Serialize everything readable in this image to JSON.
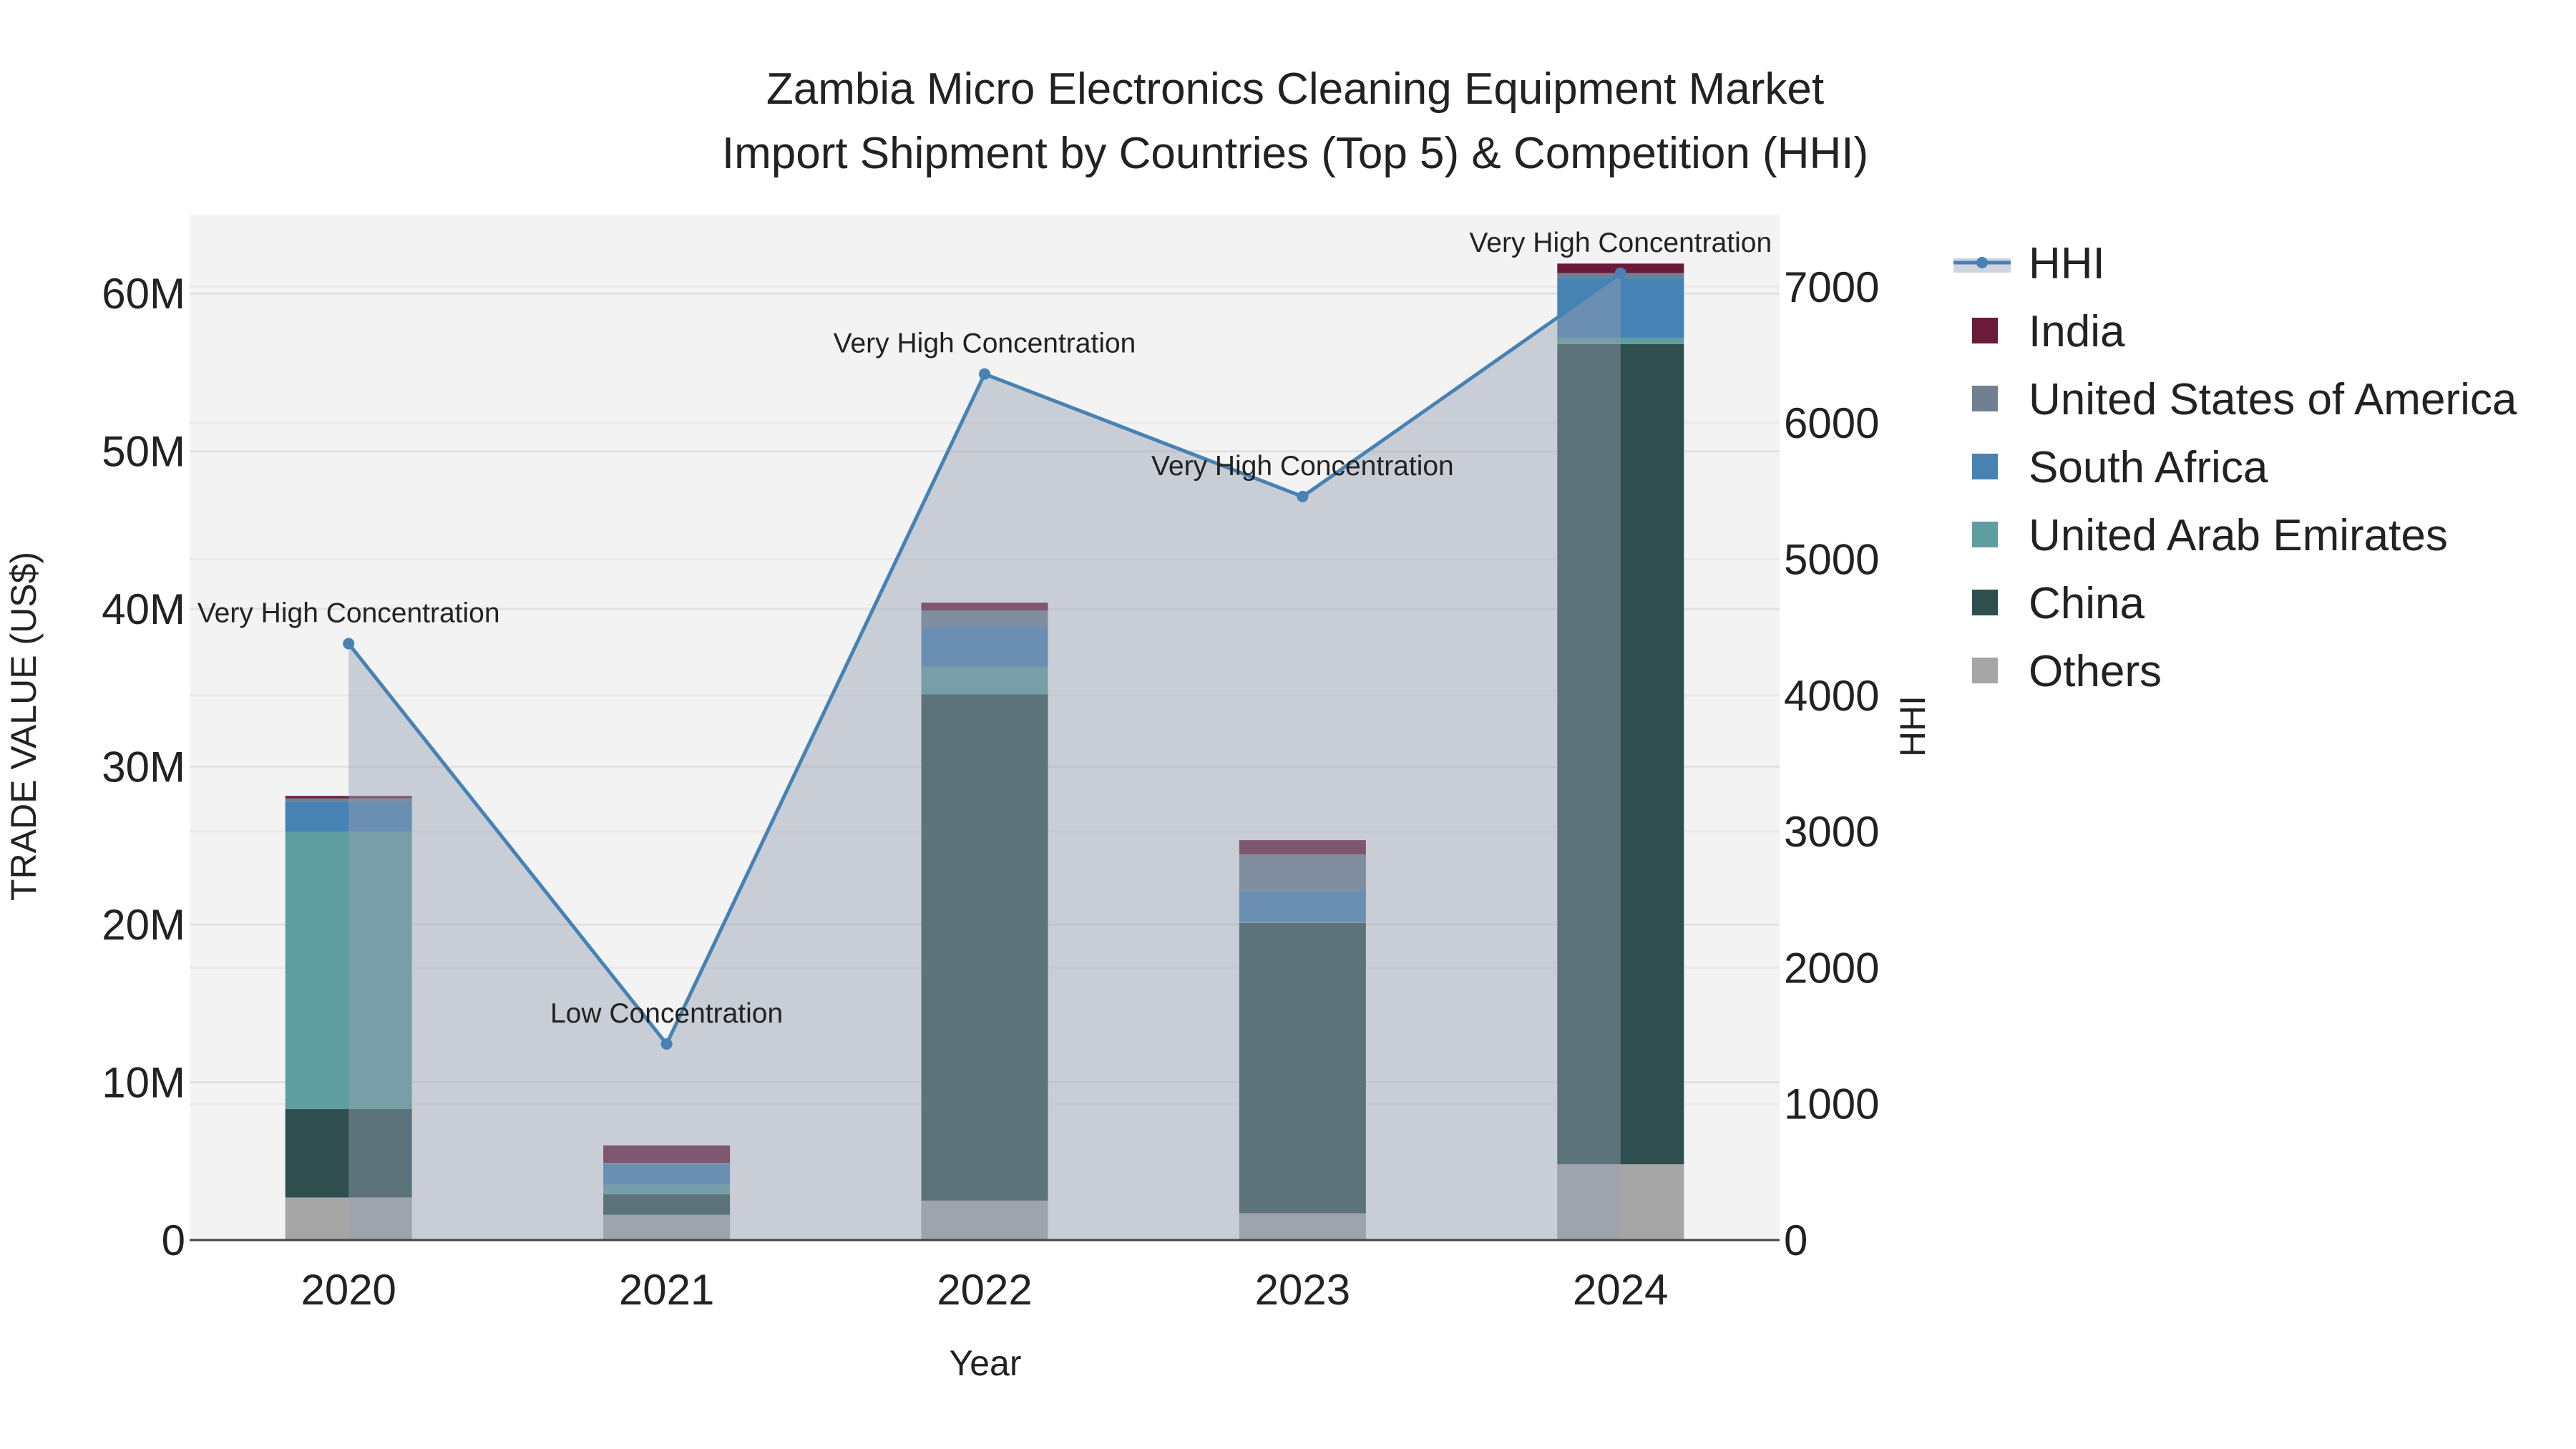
{
  "chart_data": {
    "type": "bar",
    "title_line1": "Zambia Micro Electronics Cleaning Equipment Market",
    "title_line2": "Import Shipment by Countries (Top 5) & Competition (HHI)",
    "xlabel": "Year",
    "ylabel": "TRADE VALUE (US$)",
    "y2label": "HHI",
    "categories": [
      "2020",
      "2021",
      "2022",
      "2023",
      "2024"
    ],
    "ylim": [
      0,
      65000000
    ],
    "y2lim": [
      0,
      7530
    ],
    "yticks": [
      0,
      10000000,
      20000000,
      30000000,
      40000000,
      50000000,
      60000000
    ],
    "ytick_labels": [
      "0",
      "10M",
      "20M",
      "30M",
      "40M",
      "50M",
      "60M"
    ],
    "y2ticks": [
      0,
      1000,
      2000,
      3000,
      4000,
      5000,
      6000,
      7000
    ],
    "y2tick_labels": [
      "0",
      "1000",
      "2000",
      "3000",
      "4000",
      "5000",
      "6000",
      "7000"
    ],
    "grid": true,
    "legend_position": "right",
    "series": [
      {
        "name": "Others",
        "color": "#a6a6a6",
        "values": [
          2700000,
          1600000,
          2500000,
          1700000,
          4800000
        ]
      },
      {
        "name": "China",
        "color": "#2f4f4f",
        "values": [
          5600000,
          1300000,
          32100000,
          18400000,
          52000000
        ]
      },
      {
        "name": "United Arab Emirates",
        "color": "#5f9ea0",
        "values": [
          17600000,
          600000,
          1700000,
          50000,
          400000
        ]
      },
      {
        "name": "South Africa",
        "color": "#4682b4",
        "values": [
          1900000,
          1300000,
          2600000,
          2000000,
          3800000
        ]
      },
      {
        "name": "United States of America",
        "color": "#708090",
        "values": [
          200000,
          100000,
          1000000,
          2300000,
          300000
        ]
      },
      {
        "name": "India",
        "color": "#6b1a3a",
        "values": [
          150000,
          1100000,
          500000,
          900000,
          600000
        ]
      }
    ],
    "hhi": {
      "name": "HHI",
      "color": "#4682b4",
      "values": [
        4380,
        1440,
        6360,
        5460,
        7100
      ],
      "annotations": [
        "Very High Concentration",
        "Low Concentration",
        "Very High Concentration",
        "Very High Concentration",
        "Very High Concentration"
      ]
    },
    "legend_order": [
      "HHI",
      "India",
      "United States of America",
      "South Africa",
      "United Arab Emirates",
      "China",
      "Others"
    ]
  }
}
